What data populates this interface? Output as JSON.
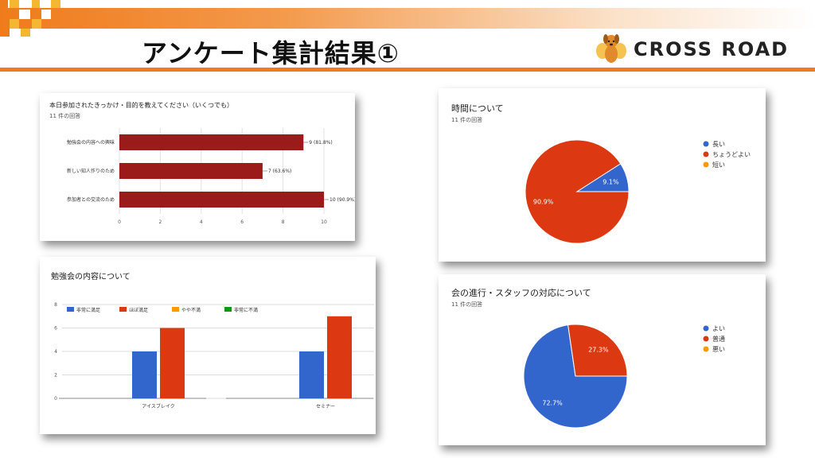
{
  "header": {
    "title": "アンケート集計結果①",
    "brand": "CROSS ROAD"
  },
  "colors": {
    "accent_orange": "#f07b1b",
    "deco_yellow": "#f5b731",
    "bar_dark_red": "#9b1b1b",
    "blue": "#3366cc",
    "red": "#dc3912",
    "orange": "#ff9900",
    "green": "#109618"
  },
  "chart_data": [
    {
      "type": "bar",
      "orientation": "horizontal",
      "title": "本日参加されたきっかけ・目的を教えてください（いくつでも）",
      "subtitle": "11 件の回答",
      "categories": [
        "勉強会の内容への興味",
        "新しい知人作りのため",
        "参加者との交流のため"
      ],
      "values": [
        9,
        7,
        10
      ],
      "data_labels": [
        "9 (81.8%)",
        "7 (63.6%)",
        "10 (90.9%)"
      ],
      "xlim": [
        0,
        10
      ],
      "xticks": [
        "0",
        "2",
        "4",
        "6",
        "8",
        "10"
      ],
      "grid": true
    },
    {
      "type": "pie",
      "title": "時間について",
      "subtitle": "11 件の回答",
      "legend": [
        "長い",
        "ちょうどよい",
        "短い"
      ],
      "values": [
        9.1,
        90.9,
        0
      ],
      "slice_labels": [
        "9.1%",
        "90.9%",
        ""
      ],
      "legend_position": "right"
    },
    {
      "type": "bar",
      "orientation": "vertical",
      "title": "勉強会の内容について",
      "categories": [
        "アイスブレイク",
        "セミナー"
      ],
      "series": [
        {
          "name": "非常に満足",
          "values": [
            4,
            4
          ]
        },
        {
          "name": "ほぼ満足",
          "values": [
            6,
            7
          ]
        },
        {
          "name": "やや不満",
          "values": [
            0,
            0
          ]
        },
        {
          "name": "非常に不満",
          "values": [
            0,
            0
          ]
        }
      ],
      "ylim": [
        0,
        8
      ],
      "yticks": [
        "0",
        "2",
        "4",
        "6",
        "8"
      ],
      "legend_position": "top",
      "grid": true
    },
    {
      "type": "pie",
      "title": "会の進行・スタッフの対応について",
      "subtitle": "11 件の回答",
      "legend": [
        "よい",
        "普通",
        "悪い"
      ],
      "values": [
        72.7,
        27.3,
        0
      ],
      "slice_labels": [
        "72.7%",
        "27.3%",
        ""
      ],
      "legend_position": "right"
    }
  ]
}
